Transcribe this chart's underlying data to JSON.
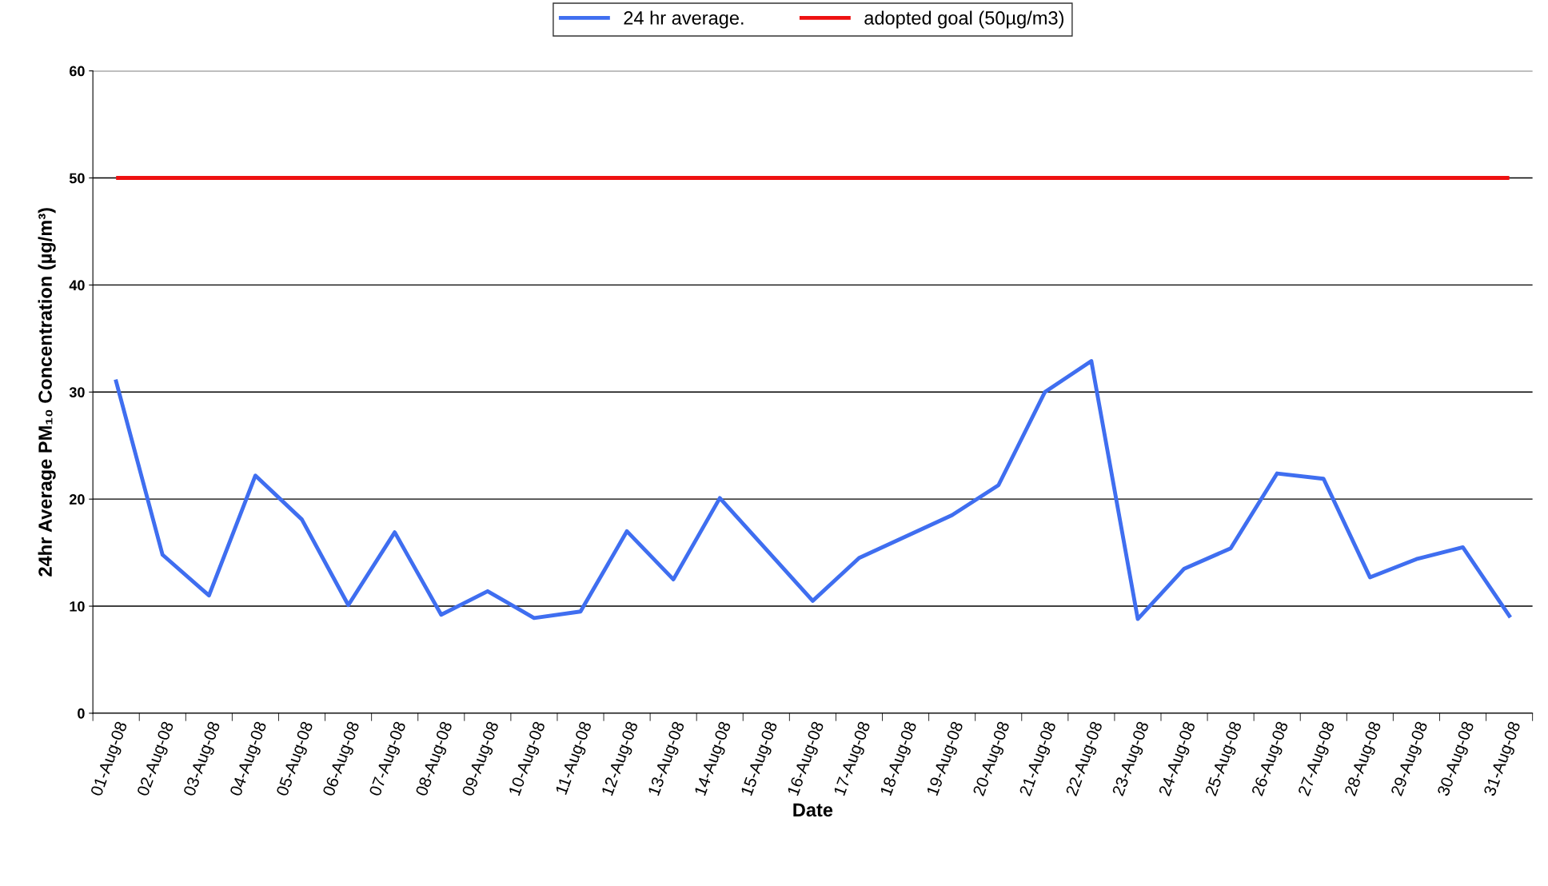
{
  "chart_data": {
    "type": "line",
    "xlabel": "Date",
    "ylabel": "24hr Average PM₁₀ Concentration (µg/m³)",
    "categories": [
      "01-Aug-08",
      "02-Aug-08",
      "03-Aug-08",
      "04-Aug-08",
      "05-Aug-08",
      "06-Aug-08",
      "07-Aug-08",
      "08-Aug-08",
      "09-Aug-08",
      "10-Aug-08",
      "11-Aug-08",
      "12-Aug-08",
      "13-Aug-08",
      "14-Aug-08",
      "15-Aug-08",
      "16-Aug-08",
      "17-Aug-08",
      "18-Aug-08",
      "19-Aug-08",
      "20-Aug-08",
      "21-Aug-08",
      "22-Aug-08",
      "23-Aug-08",
      "24-Aug-08",
      "25-Aug-08",
      "26-Aug-08",
      "27-Aug-08",
      "28-Aug-08",
      "29-Aug-08",
      "30-Aug-08",
      "31-Aug-08"
    ],
    "series": [
      {
        "name": "24 hr average.",
        "color": "#3f6ef0",
        "values": [
          31.0,
          14.8,
          11.0,
          22.2,
          18.1,
          10.1,
          16.9,
          9.2,
          11.4,
          8.9,
          9.5,
          17.0,
          12.5,
          20.1,
          15.3,
          10.5,
          14.5,
          16.5,
          18.5,
          21.3,
          30.0,
          32.9,
          8.8,
          13.5,
          15.4,
          22.4,
          21.9,
          12.7,
          14.4,
          15.5,
          9.1
        ]
      }
    ],
    "ref_lines": [
      {
        "axis": "y",
        "value": 50,
        "label": "adopted goal (50µg/m3)",
        "color": "#ee1111"
      }
    ],
    "ylim": [
      0,
      60
    ],
    "yticks": [
      0,
      10,
      20,
      30,
      40,
      50,
      60
    ],
    "grid": "y",
    "legend": "top",
    "marker": "none",
    "line_style": "solid"
  }
}
